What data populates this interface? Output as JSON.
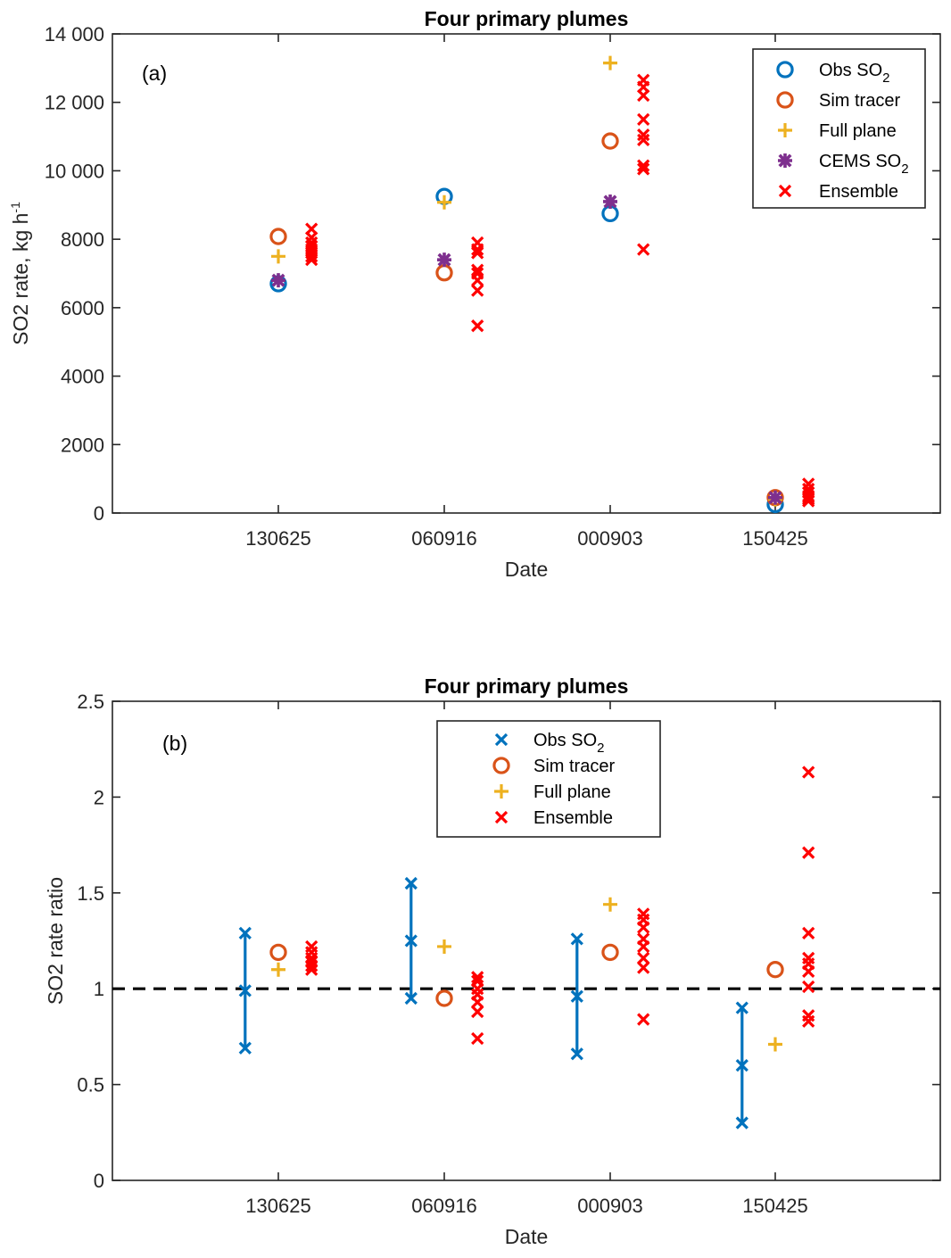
{
  "chart_data": [
    {
      "panel_label": "(a)",
      "type": "scatter",
      "title": "Four primary plumes",
      "xlabel": "Date",
      "ylabel": "SO2 rate,  kg h",
      "ylabel_sup": "-1",
      "categories": [
        "130625",
        "060916",
        "000903",
        "150425"
      ],
      "ylim": [
        0,
        14000
      ],
      "yticks": [
        0,
        2000,
        4000,
        6000,
        8000,
        10000,
        12000,
        14000
      ],
      "ytick_labels": [
        "0",
        "2000",
        "4000",
        "6000",
        "8000",
        "10 000",
        "12 000",
        "14 000"
      ],
      "legend_position": "top-right",
      "series": [
        {
          "name": "Obs SO",
          "sub": "2",
          "marker": "circle",
          "color": "#0072BD",
          "x_offset": 0,
          "values": [
            6700,
            9250,
            8750,
            250
          ]
        },
        {
          "name": "Sim tracer",
          "sub": "",
          "marker": "circle",
          "color": "#D95319",
          "x_offset": 0,
          "values": [
            8080,
            7020,
            10870,
            450
          ]
        },
        {
          "name": "Full plane",
          "sub": "",
          "marker": "plus",
          "color": "#EDB120",
          "x_offset": 0,
          "values": [
            7500,
            9080,
            13150,
            400
          ]
        },
        {
          "name": "CEMS SO",
          "sub": "2",
          "marker": "asterisk",
          "color": "#7E2F8E",
          "x_offset": 0,
          "values": [
            6800,
            7400,
            9100,
            450
          ]
        },
        {
          "name": "Ensemble",
          "sub": "",
          "marker": "x",
          "color": "#FF0000",
          "x_offset": 0.2,
          "values": [
            [
              8300,
              8050,
              7900,
              7800,
              7700,
              7600,
              7500,
              7400
            ],
            [
              7900,
              7700,
              7600,
              7100,
              7000,
              6800,
              6500,
              5470
            ],
            [
              12650,
              12450,
              12200,
              11500,
              11050,
              10900,
              10150,
              10050,
              7700
            ],
            [
              850,
              700,
              600,
              500,
              450,
              400,
              350
            ]
          ]
        }
      ]
    },
    {
      "panel_label": "(b)",
      "type": "scatter",
      "title": "Four primary plumes",
      "xlabel": "Date",
      "ylabel": "SO2 rate ratio",
      "categories": [
        "130625",
        "060916",
        "000903",
        "150425"
      ],
      "ylim": [
        0,
        2.5
      ],
      "yticks": [
        0,
        0.5,
        1,
        1.5,
        2,
        2.5
      ],
      "ytick_labels": [
        "0",
        "0.5",
        "1",
        "1.5",
        "2",
        "2.5"
      ],
      "reference_line": 1,
      "legend_position": "top-center",
      "series": [
        {
          "name": "Obs SO",
          "sub": "2",
          "marker": "x",
          "color": "#0072BD",
          "x_offset": -0.2,
          "error_bar": true,
          "values": [
            0.99,
            1.25,
            0.96,
            0.6
          ],
          "low": [
            0.69,
            0.95,
            0.66,
            0.3
          ],
          "high": [
            1.29,
            1.55,
            1.26,
            0.9
          ]
        },
        {
          "name": "Sim tracer",
          "sub": "",
          "marker": "circle",
          "color": "#D95319",
          "x_offset": 0,
          "values": [
            1.19,
            0.95,
            1.19,
            1.1
          ]
        },
        {
          "name": "Full plane",
          "sub": "",
          "marker": "plus",
          "color": "#EDB120",
          "x_offset": 0,
          "values": [
            1.1,
            1.22,
            1.44,
            0.71
          ]
        },
        {
          "name": "Ensemble",
          "sub": "",
          "marker": "x",
          "color": "#FF0000",
          "x_offset": 0.2,
          "values": [
            [
              1.22,
              1.19,
              1.16,
              1.14,
              1.12,
              1.1
            ],
            [
              1.06,
              1.04,
              1.0,
              0.97,
              0.93,
              0.88,
              0.74
            ],
            [
              1.39,
              1.36,
              1.32,
              1.26,
              1.22,
              1.16,
              1.11,
              0.84
            ],
            [
              2.13,
              1.71,
              1.29,
              1.16,
              1.13,
              1.09,
              1.01,
              0.86,
              0.83
            ]
          ]
        }
      ]
    }
  ]
}
